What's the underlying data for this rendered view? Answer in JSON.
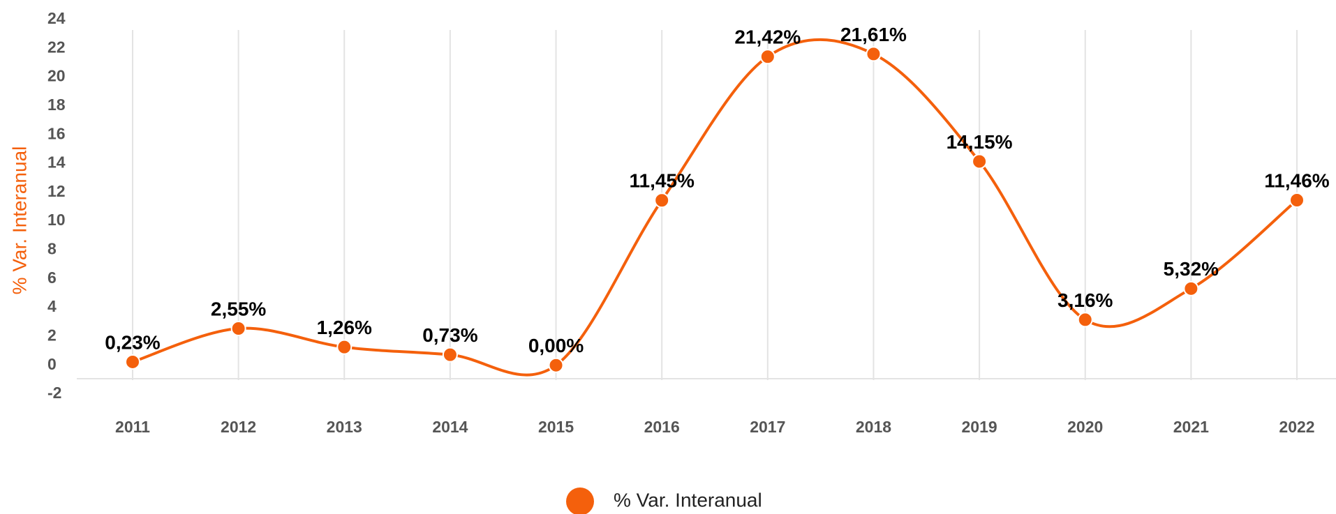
{
  "chart_data": {
    "type": "line",
    "y_axis_label": "% Var. Interanual",
    "categories": [
      "2011",
      "2012",
      "2013",
      "2014",
      "2015",
      "2016",
      "2017",
      "2018",
      "2019",
      "2020",
      "2021",
      "2022"
    ],
    "series": [
      {
        "name": "% Var. Interanual",
        "color": "#f4600c",
        "values": [
          0.23,
          2.55,
          1.26,
          0.73,
          0.0,
          11.45,
          21.42,
          21.61,
          14.15,
          3.16,
          5.32,
          11.46
        ],
        "value_labels": [
          "0,23%",
          "2,55%",
          "1,26%",
          "0,73%",
          "0,00%",
          "11,45%",
          "21,42%",
          "21,61%",
          "14,15%",
          "3,16%",
          "5,32%",
          "11,46%"
        ]
      }
    ],
    "ylim": [
      -2,
      24
    ],
    "yticks": [
      -2,
      0,
      2,
      4,
      6,
      8,
      10,
      12,
      14,
      16,
      18,
      20,
      22,
      24
    ],
    "grid": true,
    "legend": "bottom"
  }
}
